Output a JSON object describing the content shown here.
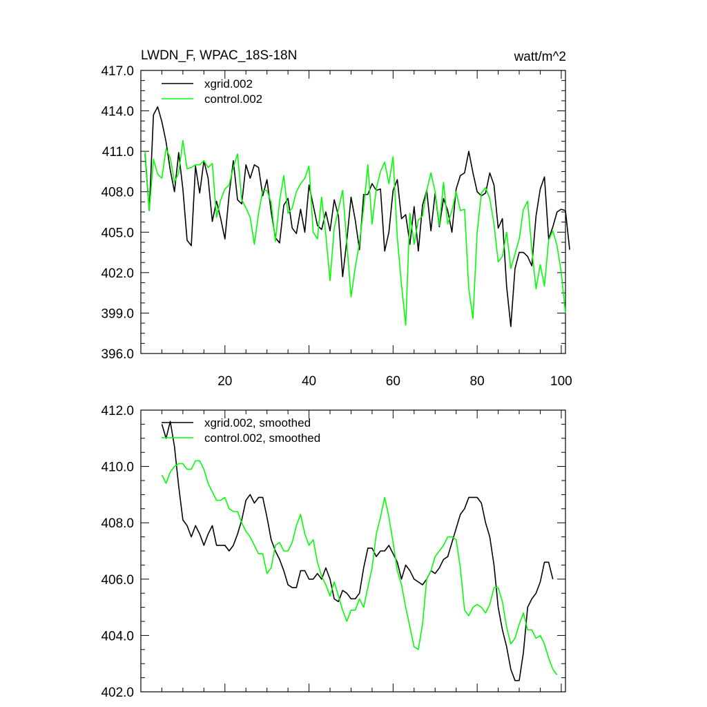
{
  "figure": {
    "title": "LWDN_F, WPAC_18S-18N",
    "units": "watt/m^2"
  },
  "chart_data": [
    {
      "type": "line",
      "title": "LWDN_F, WPAC_18S-18N",
      "units": "watt/m^2",
      "xlim": [
        0,
        101
      ],
      "ylim": [
        396,
        417
      ],
      "yticks": [
        396,
        399,
        402,
        405,
        408,
        411,
        414,
        417
      ],
      "ytick_labels": [
        "396.0",
        "399.0",
        "402.0",
        "405.0",
        "408.0",
        "411.0",
        "414.0",
        "417.0"
      ],
      "xticks": [
        20,
        40,
        60,
        80,
        100
      ],
      "xtick_labels": [
        "20",
        "40",
        "60",
        "80",
        "100"
      ],
      "x_start": 1,
      "legend": "top-left",
      "series": [
        {
          "name": "xgrid.002",
          "color": "#000000",
          "values": [
            410.8,
            406.6,
            413.7,
            414.3,
            413.2,
            411.7,
            409.6,
            408.0,
            410.9,
            408.2,
            404.4,
            404.0,
            409.9,
            407.9,
            410.3,
            409.0,
            405.8,
            407.3,
            406.0,
            404.5,
            407.8,
            410.3,
            407.4,
            407.1,
            410.0,
            409.0,
            410.0,
            409.8,
            407.7,
            408.9,
            406.5,
            404.6,
            404.2,
            407.0,
            407.5,
            405.3,
            404.9,
            406.7,
            405.0,
            408.5,
            407.0,
            405.5,
            405.2,
            406.5,
            405.1,
            407.4,
            406.2,
            401.7,
            404.4,
            407.6,
            405.9,
            403.7,
            407.8,
            407.8,
            408.6,
            408.1,
            408.2,
            403.6,
            405.0,
            408.1,
            408.9,
            406.0,
            406.3,
            404.1,
            406.9,
            403.6,
            407.0,
            408.1,
            405.1,
            407.9,
            405.4,
            407.5,
            406.6,
            405.0,
            408.2,
            409.2,
            409.4,
            411.0,
            409.4,
            408.0,
            407.7,
            407.9,
            409.4,
            408.5,
            405.3,
            406.0,
            401.0,
            398.0,
            402.3,
            403.5,
            403.5,
            403.2,
            402.5,
            406.2,
            408.2,
            409.1,
            404.5,
            405.4,
            406.5,
            406.7,
            406.6,
            403.7
          ]
        },
        {
          "name": "control.002",
          "color": "#00ff00",
          "values": [
            411.0,
            406.6,
            410.4,
            409.3,
            409.0,
            411.2,
            410.5,
            408.7,
            409.4,
            411.8,
            409.7,
            409.8,
            410.0,
            410.0,
            410.3,
            409.8,
            410.1,
            406.1,
            407.4,
            408.2,
            408.5,
            409.8,
            410.8,
            407.4,
            406.8,
            406.1,
            404.1,
            406.4,
            408.1,
            408.1,
            407.2,
            404.3,
            407.3,
            409.2,
            406.4,
            406.8,
            408.0,
            408.6,
            409.0,
            409.9,
            405.0,
            404.5,
            407.6,
            404.8,
            401.4,
            405.3,
            406.7,
            408.1,
            404.2,
            400.2,
            402.4,
            404.2,
            406.8,
            410.0,
            405.6,
            408.2,
            409.5,
            410.2,
            408.6,
            410.6,
            404.6,
            401.1,
            398.1,
            406.4,
            404.1,
            405.9,
            406.2,
            408.1,
            409.4,
            408.0,
            405.5,
            408.7,
            405.6,
            406.6,
            408.0,
            406.6,
            406.7,
            400.8,
            398.6,
            405.0,
            407.9,
            408.3,
            407.5,
            405.6,
            402.8,
            403.2,
            405.0,
            402.3,
            403.4,
            404.5,
            406.7,
            407.3,
            403.7,
            400.8,
            402.6,
            401.0,
            404.4,
            405.1,
            404.0,
            402.0,
            399.0
          ]
        }
      ]
    },
    {
      "type": "line",
      "xlim": [
        0,
        101
      ],
      "ylim": [
        402,
        412
      ],
      "yticks": [
        402,
        404,
        406,
        408,
        410,
        412
      ],
      "ytick_labels": [
        "402.0",
        "404.0",
        "406.0",
        "408.0",
        "410.0",
        "412.0"
      ],
      "xticks": [
        20,
        40,
        60,
        80,
        100
      ],
      "x_start": 5,
      "legend": "top-left",
      "series": [
        {
          "name": "xgrid.002, smoothed",
          "color": "#000000",
          "values": [
            411.5,
            411.0,
            411.6,
            410.7,
            409.3,
            408.1,
            407.9,
            407.5,
            407.9,
            407.6,
            407.2,
            407.6,
            407.9,
            407.2,
            407.2,
            407.2,
            407.0,
            407.2,
            407.6,
            408.1,
            408.8,
            409.0,
            408.7,
            408.9,
            408.9,
            408.2,
            407.4,
            407.0,
            406.7,
            406.3,
            405.8,
            405.7,
            405.7,
            406.3,
            406.3,
            406.0,
            406.0,
            406.2,
            406.0,
            406.4,
            406.0,
            405.3,
            405.2,
            405.6,
            405.5,
            405.3,
            405.3,
            405.5,
            406.4,
            407.1,
            407.1,
            406.8,
            407.0,
            407.0,
            407.2,
            406.9,
            406.6,
            406.0,
            406.5,
            406.3,
            406.0,
            405.9,
            405.8,
            406.0,
            406.3,
            406.2,
            406.4,
            406.7,
            406.8,
            407.3,
            407.8,
            408.3,
            408.5,
            408.9,
            408.9,
            408.9,
            408.7,
            408.0,
            407.5,
            406.5,
            405.0,
            404.2,
            403.6,
            402.8,
            402.4,
            402.4,
            403.4,
            405.0,
            405.3,
            405.5,
            405.9,
            406.6,
            406.6,
            406.0
          ]
        },
        {
          "name": "control.002, smoothed",
          "color": "#00ff00",
          "values": [
            409.7,
            409.4,
            409.8,
            410.0,
            410.1,
            410.1,
            409.9,
            409.9,
            410.2,
            410.2,
            409.9,
            409.4,
            409.1,
            408.8,
            408.8,
            408.9,
            408.5,
            408.4,
            408.4,
            408.0,
            407.7,
            407.5,
            407.2,
            406.9,
            406.9,
            406.2,
            406.4,
            407.2,
            407.3,
            407.0,
            407.0,
            407.3,
            407.9,
            408.3,
            407.6,
            407.2,
            407.4,
            406.6,
            406.1,
            405.8,
            405.4,
            405.9,
            405.4,
            404.9,
            404.5,
            404.9,
            404.9,
            405.3,
            405.0,
            405.7,
            406.4,
            407.6,
            408.2,
            408.9,
            408.2,
            407.3,
            406.3,
            405.8,
            405.0,
            404.3,
            403.6,
            403.5,
            404.4,
            406.0,
            406.3,
            406.8,
            407.0,
            407.2,
            407.5,
            407.5,
            407.4,
            406.4,
            404.9,
            404.7,
            405.0,
            405.1,
            405.0,
            404.8,
            405.1,
            405.7,
            405.7,
            405.2,
            404.3,
            403.7,
            403.9,
            404.4,
            404.8,
            404.2,
            404.2,
            403.9,
            404.0,
            403.7,
            403.2,
            402.8,
            402.6
          ]
        }
      ]
    }
  ]
}
